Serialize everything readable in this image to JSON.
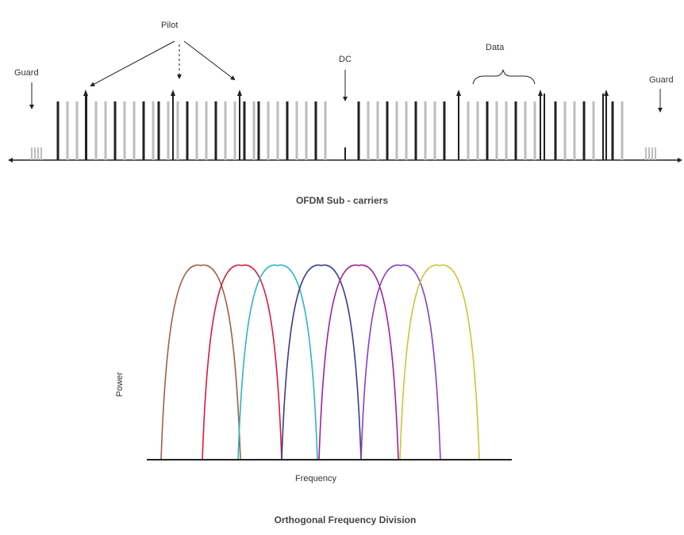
{
  "subcarriers": {
    "labels": {
      "guard_left": "Guard",
      "guard_right": "Guard",
      "pilot": "Pilot",
      "dc": "DC",
      "data": "Data"
    },
    "caption": "OFDM Sub - carriers",
    "colors": {
      "gray": "#bdbdbd",
      "black": "#222222",
      "axis": "#222222"
    }
  },
  "spectrum": {
    "ylabel": "Power",
    "xlabel": "Frequency",
    "caption": "Orthogonal Frequency Division",
    "curve_colors": [
      "#a06040",
      "#d81b3c",
      "#2bb5c8",
      "#3a3a8a",
      "#a020a0",
      "#8a3cc8",
      "#c8c832"
    ]
  }
}
